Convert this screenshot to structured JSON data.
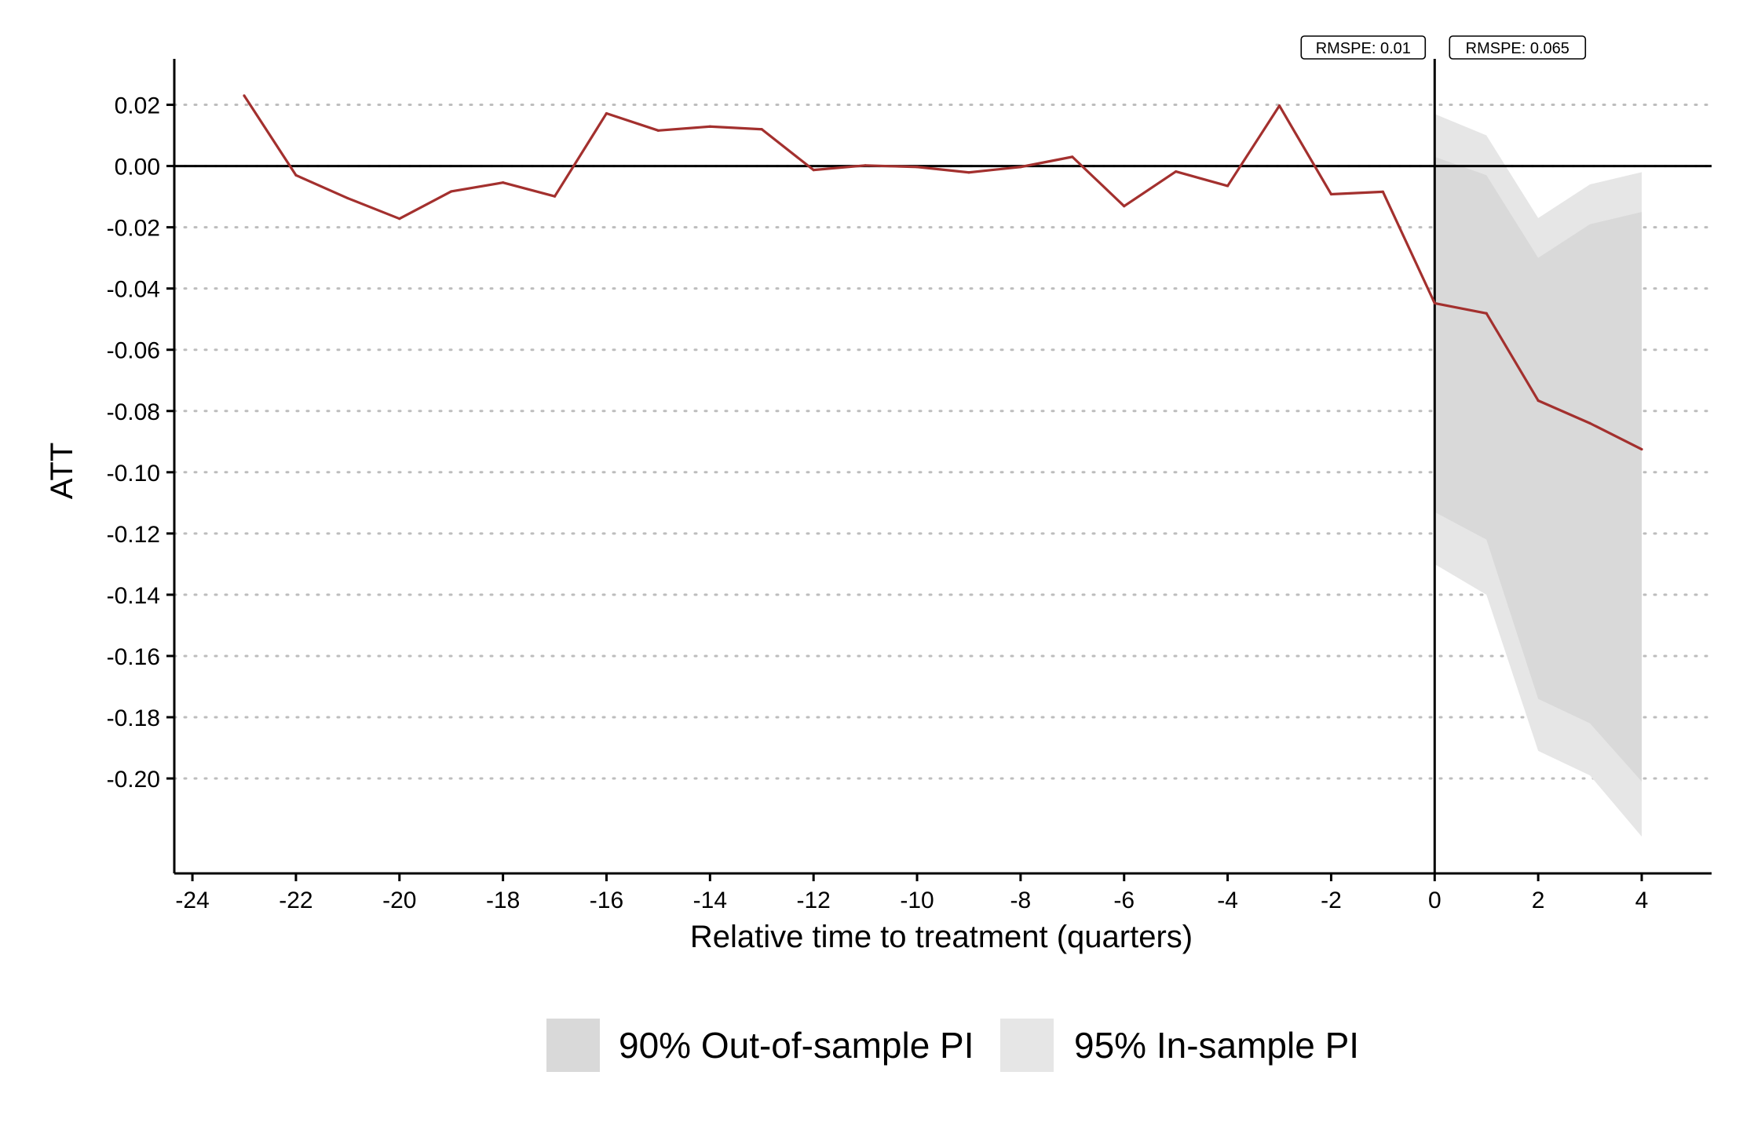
{
  "chart_data": {
    "type": "line",
    "title": "",
    "xlabel": "Relative time to treatment (quarters)",
    "ylabel": "ATT",
    "xlim": [
      -24.35,
      5.35
    ],
    "ylim": [
      -0.231,
      0.035
    ],
    "x_ticks": [
      -24,
      -22,
      -20,
      -18,
      -16,
      -14,
      -12,
      -10,
      -8,
      -6,
      -4,
      -2,
      0,
      2,
      4
    ],
    "x_tick_labels": [
      "-24",
      "-22",
      "-20",
      "-18",
      "-16",
      "-14",
      "-12",
      "-10",
      "-8",
      "-6",
      "-4",
      "-2",
      "0",
      "2",
      "4"
    ],
    "y_ticks": [
      0.02,
      0.0,
      -0.02,
      -0.04,
      -0.06,
      -0.08,
      -0.1,
      -0.12,
      -0.14,
      -0.16,
      -0.18,
      -0.2
    ],
    "y_tick_labels": [
      "0.02",
      "0.00",
      "-0.02",
      "-0.04",
      "-0.06",
      "-0.08",
      "-0.10",
      "-0.12",
      "-0.14",
      "-0.16",
      "-0.18",
      "-0.20"
    ],
    "grid": "horizontal dotted",
    "reference_lines": {
      "horizontal_y": 0,
      "vertical_x": 0
    },
    "series": [
      {
        "color": "#A3302E",
        "x": [
          -23,
          -22,
          -21,
          -20,
          -19,
          -18,
          -17,
          -16,
          -15,
          -14,
          -13,
          -12,
          -11,
          -10,
          -9,
          -8,
          -7,
          -6,
          -5,
          -4,
          -3,
          -2,
          -1,
          0,
          1,
          2,
          3,
          4
        ],
        "values": [
          0.023,
          -0.003,
          -0.0105,
          -0.0172,
          -0.0083,
          -0.0054,
          -0.0099,
          0.0172,
          0.0116,
          0.0129,
          0.012,
          -0.0013,
          0.0002,
          -0.0003,
          -0.0021,
          -0.0003,
          0.003,
          -0.0131,
          -0.0018,
          -0.0065,
          0.0197,
          -0.0092,
          -0.0084,
          -0.0448,
          -0.0481,
          -0.0766,
          -0.084,
          -0.0925
        ]
      }
    ],
    "bands": [
      {
        "name": "95% In-sample PI",
        "color": "#E6E6E6",
        "x": [
          0,
          1,
          2,
          3,
          4
        ],
        "lower": [
          -0.13,
          -0.14,
          -0.191,
          -0.199,
          -0.219
        ],
        "upper": [
          0.017,
          0.01,
          -0.017,
          -0.006,
          -0.002
        ]
      },
      {
        "name": "90% Out-of-sample PI",
        "color": "#D9D9D9",
        "x": [
          0,
          1,
          2,
          3,
          4
        ],
        "lower": [
          -0.113,
          -0.122,
          -0.174,
          -0.182,
          -0.201
        ],
        "upper": [
          0.003,
          -0.003,
          -0.03,
          -0.019,
          -0.015
        ]
      }
    ],
    "annotations": [
      {
        "text": "RMSPE: 0.01",
        "region": "pre-treatment"
      },
      {
        "text": "RMSPE: 0.065",
        "region": "post-treatment"
      }
    ],
    "legend": {
      "position": "bottom",
      "items": [
        {
          "label": "90% Out-of-sample PI",
          "color": "#D9D9D9"
        },
        {
          "label": "95% In-sample PI",
          "color": "#E6E6E6"
        }
      ]
    }
  }
}
